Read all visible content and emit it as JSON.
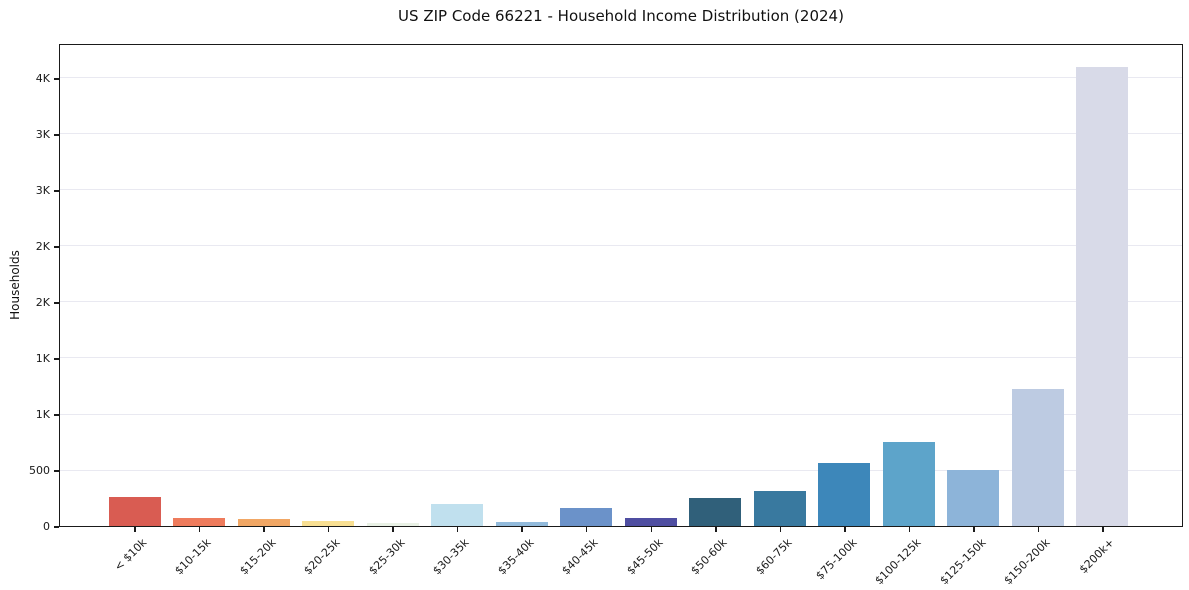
{
  "chart_data": {
    "type": "bar",
    "title": "US ZIP Code 66221 - Household Income Distribution (2024)",
    "xlabel": "",
    "ylabel": "Households",
    "categories": [
      "< $10k",
      "$10-15k",
      "$15-20k",
      "$20-25k",
      "$25-30k",
      "$30-35k",
      "$35-40k",
      "$40-45k",
      "$45-50k",
      "$50-60k",
      "$60-75k",
      "$75-100k",
      "$100-125k",
      "$125-150k",
      "$150-200k",
      "$200k+"
    ],
    "values": [
      260,
      70,
      60,
      45,
      30,
      195,
      40,
      160,
      75,
      250,
      310,
      560,
      750,
      500,
      1220,
      4100
    ],
    "bar_colors": [
      "#d95c52",
      "#ee7b5c",
      "#f1a765",
      "#f8df92",
      "#e9f1e5",
      "#c0e0ee",
      "#92badb",
      "#6b92c9",
      "#4f4ea1",
      "#30607a",
      "#39799f",
      "#3d87ba",
      "#5da4ca",
      "#8db4d9",
      "#bdcbe2",
      "#d8dae8"
    ],
    "ylim": [
      0,
      4312
    ],
    "yticks": {
      "values": [
        0,
        500,
        1000,
        1500,
        2000,
        2500,
        3000,
        3500,
        4000
      ],
      "labels": [
        "0",
        "500",
        "1K",
        "1K",
        "2K",
        "2K",
        "3K",
        "3K",
        "4K"
      ]
    },
    "grid": "horizontal-only",
    "legend": "none",
    "axis_color": "#1a1a1a",
    "grid_color": "#e9e9f1",
    "background_color": "#ffffff"
  }
}
